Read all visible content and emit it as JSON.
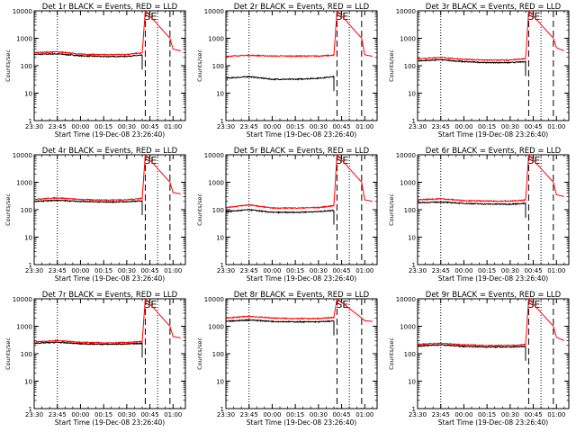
{
  "figure": {
    "title_template": "Det {det} BLACK = Events, RED = LLD",
    "xlabel": "Start Time (19-Dec-08 23:26:40)",
    "ylabel": "Counts/sec",
    "colors": {
      "events": "#000000",
      "lld": "#ff0000",
      "axes": "#000000",
      "background": "#ffffff"
    }
  },
  "chart_data": [
    {
      "type": "line",
      "title": "Det 1r BLACK = Events, RED = LLD",
      "xlabel": "Start Time (19-Dec-08 23:26:40)",
      "ylabel": "Counts/sec",
      "annotation": "SE",
      "yscale": "log",
      "ylim": [
        1,
        10000
      ],
      "yticks": [
        "1",
        "10",
        "100",
        "1000",
        "10000"
      ],
      "xticks": [
        "23:30",
        "23:45",
        "00:00",
        "00:15",
        "00:30",
        "00:45",
        "01:00"
      ],
      "xlim_minutes_from_2330": [
        0,
        98
      ],
      "series": [
        {
          "name": "Events",
          "values_approx": {
            "23:30": 260,
            "23:45": 270,
            "00:00": 230,
            "00:15": 215,
            "00:30": 220,
            "00:40": 240
          }
        },
        {
          "name": "LLD",
          "values_approx": {
            "23:30": 300,
            "23:45": 320,
            "00:00": 265,
            "00:15": 250,
            "00:30": 260,
            "00:40": 290,
            "00:42": 10000,
            "00:58": 1000,
            "01:00": 400,
            "01:05": 350
          }
        }
      ]
    },
    {
      "type": "line",
      "title": "Det 2r BLACK = Events, RED = LLD",
      "xlabel": "Start Time (19-Dec-08 23:26:40)",
      "ylabel": "Counts/sec",
      "annotation": "SE",
      "yscale": "log",
      "ylim": [
        1,
        10000
      ],
      "yticks": [
        "1",
        "10",
        "100",
        "1000",
        "10000"
      ],
      "xticks": [
        "23:30",
        "23:45",
        "00:00",
        "00:15",
        "00:30",
        "00:45",
        "01:00"
      ],
      "xlim_minutes_from_2330": [
        0,
        98
      ],
      "series": [
        {
          "name": "Events",
          "values_approx": {
            "23:30": 35,
            "23:45": 40,
            "00:00": 32,
            "00:15": 32,
            "00:30": 35,
            "00:40": 40
          }
        },
        {
          "name": "LLD",
          "values_approx": {
            "23:30": 220,
            "23:45": 240,
            "00:00": 225,
            "00:15": 225,
            "00:30": 225,
            "00:40": 240,
            "00:42": 10000,
            "00:58": 1000,
            "01:00": 250,
            "01:05": 220
          }
        }
      ]
    },
    {
      "type": "line",
      "title": "Det 3r BLACK = Events, RED = LLD",
      "xlabel": "Start Time (19-Dec-08 23:26:40)",
      "ylabel": "Counts/sec",
      "annotation": "SE",
      "yscale": "log",
      "ylim": [
        1,
        10000
      ],
      "yticks": [
        "1",
        "10",
        "100",
        "1000",
        "10000"
      ],
      "xticks": [
        "23:30",
        "23:45",
        "00:00",
        "00:15",
        "00:30",
        "00:45",
        "01:00"
      ],
      "xlim_minutes_from_2330": [
        0,
        98
      ],
      "series": [
        {
          "name": "Events",
          "values_approx": {
            "23:30": 150,
            "23:45": 165,
            "00:00": 140,
            "00:15": 130,
            "00:30": 130,
            "00:40": 140
          }
        },
        {
          "name": "LLD",
          "values_approx": {
            "23:30": 180,
            "23:45": 200,
            "00:00": 170,
            "00:15": 160,
            "00:30": 160,
            "00:40": 180,
            "00:42": 10000,
            "00:58": 1000,
            "01:00": 450,
            "01:05": 350
          }
        }
      ]
    },
    {
      "type": "line",
      "title": "Det 4r BLACK = Events, RED = LLD",
      "xlabel": "Start Time (19-Dec-08 23:26:40)",
      "ylabel": "Counts/sec",
      "annotation": "SE",
      "yscale": "log",
      "ylim": [
        1,
        10000
      ],
      "yticks": [
        "1",
        "10",
        "100",
        "1000",
        "10000"
      ],
      "xticks": [
        "23:30",
        "23:45",
        "00:00",
        "00:15",
        "00:30",
        "00:45",
        "01:00"
      ],
      "xlim_minutes_from_2330": [
        0,
        98
      ],
      "series": [
        {
          "name": "Events",
          "values_approx": {
            "23:30": 200,
            "23:45": 220,
            "00:00": 200,
            "00:15": 190,
            "00:30": 195,
            "00:40": 210
          }
        },
        {
          "name": "LLD",
          "values_approx": {
            "23:30": 240,
            "23:45": 270,
            "00:00": 235,
            "00:15": 225,
            "00:30": 230,
            "00:40": 260,
            "00:42": 10000,
            "00:58": 1000,
            "01:00": 420,
            "01:05": 380
          }
        }
      ]
    },
    {
      "type": "line",
      "title": "Det 5r BLACK = Events, RED = LLD",
      "xlabel": "Start Time (19-Dec-08 23:26:40)",
      "ylabel": "Counts/sec",
      "annotation": "SE",
      "yscale": "log",
      "ylim": [
        1,
        10000
      ],
      "yticks": [
        "1",
        "10",
        "100",
        "1000",
        "10000"
      ],
      "xticks": [
        "23:30",
        "23:45",
        "00:00",
        "00:15",
        "00:30",
        "00:45",
        "01:00"
      ],
      "xlim_minutes_from_2330": [
        0,
        98
      ],
      "series": [
        {
          "name": "Events",
          "values_approx": {
            "23:30": 85,
            "23:45": 100,
            "00:00": 80,
            "00:15": 80,
            "00:30": 85,
            "00:40": 95
          }
        },
        {
          "name": "LLD",
          "values_approx": {
            "23:30": 120,
            "23:45": 150,
            "00:00": 115,
            "00:15": 115,
            "00:30": 120,
            "00:40": 140,
            "00:42": 10000,
            "00:58": 1000,
            "01:00": 230,
            "01:05": 200
          }
        }
      ]
    },
    {
      "type": "line",
      "title": "Det 6r BLACK = Events, RED = LLD",
      "xlabel": "Start Time (19-Dec-08 23:26:40)",
      "ylabel": "Counts/sec",
      "annotation": "SE",
      "yscale": "log",
      "ylim": [
        1,
        10000
      ],
      "yticks": [
        "1",
        "10",
        "100",
        "1000",
        "10000"
      ],
      "xticks": [
        "23:30",
        "23:45",
        "00:00",
        "00:15",
        "00:30",
        "00:45",
        "01:00"
      ],
      "xlim_minutes_from_2330": [
        0,
        98
      ],
      "series": [
        {
          "name": "Events",
          "values_approx": {
            "23:30": 180,
            "23:45": 190,
            "00:00": 170,
            "00:15": 160,
            "00:30": 160,
            "00:40": 170
          }
        },
        {
          "name": "LLD",
          "values_approx": {
            "23:30": 230,
            "23:45": 250,
            "00:00": 215,
            "00:15": 205,
            "00:30": 205,
            "00:40": 225,
            "00:42": 10000,
            "00:58": 1000,
            "01:00": 350,
            "01:05": 300
          }
        }
      ]
    },
    {
      "type": "line",
      "title": "Det 7r BLACK = Events, RED = LLD",
      "xlabel": "Start Time (19-Dec-08 23:26:40)",
      "ylabel": "Counts/sec",
      "annotation": "SE",
      "yscale": "log",
      "ylim": [
        1,
        10000
      ],
      "yticks": [
        "1",
        "10",
        "100",
        "1000",
        "10000"
      ],
      "xticks": [
        "23:30",
        "23:45",
        "00:00",
        "00:15",
        "00:30",
        "00:45",
        "01:00"
      ],
      "xlim_minutes_from_2330": [
        0,
        98
      ],
      "series": [
        {
          "name": "Events",
          "values_approx": {
            "23:30": 240,
            "23:45": 260,
            "00:00": 230,
            "00:15": 220,
            "00:30": 225,
            "00:40": 240
          }
        },
        {
          "name": "LLD",
          "values_approx": {
            "23:30": 270,
            "23:45": 300,
            "00:00": 260,
            "00:15": 250,
            "00:30": 255,
            "00:40": 280,
            "00:42": 10000,
            "00:58": 1000,
            "01:00": 420,
            "01:05": 380
          }
        }
      ]
    },
    {
      "type": "line",
      "title": "Det 8r BLACK = Events, RED = LLD",
      "xlabel": "Start Time (19-Dec-08 23:26:40)",
      "ylabel": "Counts/sec",
      "annotation": "SE",
      "yscale": "log",
      "ylim": [
        1,
        10000
      ],
      "yticks": [
        "1",
        "10",
        "100",
        "1000",
        "10000"
      ],
      "xticks": [
        "23:30",
        "23:45",
        "00:00",
        "00:15",
        "00:30",
        "00:45",
        "01:00"
      ],
      "xlim_minutes_from_2330": [
        0,
        98
      ],
      "series": [
        {
          "name": "Events",
          "values_approx": {
            "23:30": 1500,
            "23:45": 1700,
            "00:00": 1500,
            "00:15": 1450,
            "00:30": 1450,
            "00:40": 1550
          }
        },
        {
          "name": "LLD",
          "values_approx": {
            "23:30": 2000,
            "23:45": 2300,
            "00:00": 2000,
            "00:15": 1900,
            "00:30": 1900,
            "00:40": 2100,
            "00:42": 10000,
            "00:58": 2000,
            "01:00": 1600,
            "01:05": 1500
          }
        }
      ]
    },
    {
      "type": "line",
      "title": "Det 9r BLACK = Events, RED = LLD",
      "xlabel": "Start Time (19-Dec-08 23:26:40)",
      "ylabel": "Counts/sec",
      "annotation": "SE",
      "yscale": "log",
      "ylim": [
        1,
        10000
      ],
      "yticks": [
        "1",
        "10",
        "100",
        "1000",
        "10000"
      ],
      "xticks": [
        "23:30",
        "23:45",
        "00:00",
        "00:15",
        "00:30",
        "00:45",
        "01:00"
      ],
      "xlim_minutes_from_2330": [
        0,
        98
      ],
      "series": [
        {
          "name": "Events",
          "values_approx": {
            "23:30": 190,
            "23:45": 210,
            "00:00": 185,
            "00:15": 175,
            "00:30": 175,
            "00:40": 185
          }
        },
        {
          "name": "LLD",
          "values_approx": {
            "23:30": 220,
            "23:45": 240,
            "00:00": 210,
            "00:15": 200,
            "00:30": 200,
            "00:40": 215,
            "00:42": 10000,
            "00:58": 1000,
            "01:00": 400,
            "01:05": 300
          }
        }
      ]
    }
  ]
}
